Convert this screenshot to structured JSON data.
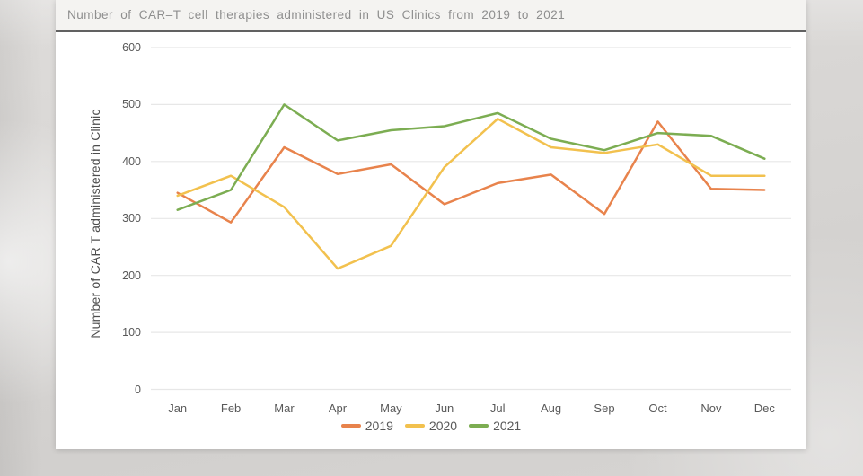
{
  "page": {
    "title": "Number of CAR–T cell therapies administered in US Clinics from 2019 to 2021"
  },
  "chart_data": {
    "type": "line",
    "title": "Number of CAR–T cell therapies administered in US Clinics from 2019 to 2021",
    "xlabel": "",
    "ylabel": "Number of CAR T administered in Clinic",
    "categories": [
      "Jan",
      "Feb",
      "Mar",
      "Apr",
      "May",
      "Jun",
      "Jul",
      "Aug",
      "Sep",
      "Oct",
      "Nov",
      "Dec"
    ],
    "y_ticks": [
      0,
      100,
      200,
      300,
      400,
      500,
      600
    ],
    "ylim": [
      0,
      600
    ],
    "grid": "horizontal",
    "legend_position": "bottom",
    "series": [
      {
        "name": "2019",
        "color": "#e8834c",
        "values": [
          345,
          293,
          425,
          378,
          395,
          325,
          362,
          377,
          308,
          470,
          352,
          350
        ]
      },
      {
        "name": "2020",
        "color": "#f2c14e",
        "values": [
          340,
          375,
          320,
          212,
          252,
          390,
          475,
          425,
          415,
          430,
          375,
          375
        ]
      },
      {
        "name": "2021",
        "color": "#7cad52",
        "values": [
          315,
          350,
          500,
          437,
          455,
          462,
          485,
          440,
          420,
          450,
          445,
          405
        ]
      }
    ]
  },
  "colors": {
    "page_background": "#d5d3d1",
    "card_background": "#ffffff",
    "title_strip": "#f4f3f1",
    "title_text": "#8e8e8e",
    "title_rule": "#616161",
    "axis_text": "#595959",
    "gridline": "#e7e7e7"
  }
}
